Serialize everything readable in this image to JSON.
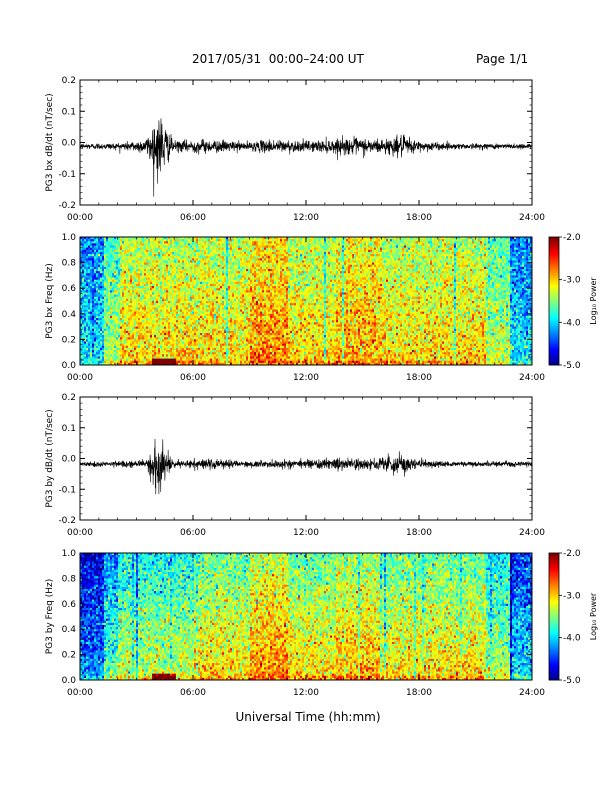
{
  "header": {
    "title": "2017/05/31  00:00–24:00 UT",
    "page": "Page 1/1"
  },
  "footer": {
    "xlabel": "Universal Time (hh:mm)"
  },
  "chart_data": [
    {
      "type": "line",
      "ylabel": "PG3 bx dB/dt (nT/sec)",
      "xlim": [
        0,
        24
      ],
      "ylim": [
        -0.2,
        0.2
      ],
      "xticks": [
        "00:00",
        "06:00",
        "12:00",
        "18:00",
        "24:00"
      ],
      "yticks": [
        "0.2",
        "0.1",
        "0.0",
        "-0.1",
        "-0.2"
      ],
      "series": [
        {
          "x": [
            0,
            2,
            3.5,
            4.0,
            4.3,
            4.6,
            5,
            6.5,
            9,
            10.2,
            12,
            13.5,
            14.5,
            16,
            17.0,
            17.5,
            18,
            20,
            22,
            24
          ],
          "amplitude": [
            0.008,
            0.01,
            0.02,
            0.08,
            0.1,
            0.05,
            0.015,
            0.02,
            0.012,
            0.02,
            0.015,
            0.02,
            0.025,
            0.02,
            0.03,
            0.025,
            0.015,
            0.008,
            0.008,
            0.008
          ],
          "baseline": -0.012
        }
      ]
    },
    {
      "type": "heatmap",
      "ylabel": "PG3 bx Freq (Hz)",
      "xlim": [
        0,
        24
      ],
      "ylim": [
        0,
        1
      ],
      "xticks": [
        "00:00",
        "06:00",
        "12:00",
        "18:00",
        "24:00"
      ],
      "yticks": [
        "1.0",
        "0.8",
        "0.6",
        "0.4",
        "0.2",
        "0.0"
      ],
      "colorbar": {
        "label": "Log₁₀ Power",
        "range": [
          -5.0,
          -2.0
        ],
        "ticks": [
          "-2.0",
          "-3.0",
          "-4.0",
          "-5.0"
        ]
      }
    },
    {
      "type": "line",
      "ylabel": "PG3 by dB/dt (nT/sec)",
      "xlim": [
        0,
        24
      ],
      "ylim": [
        -0.2,
        0.2
      ],
      "xticks": [
        "00:00",
        "06:00",
        "12:00",
        "18:00",
        "24:00"
      ],
      "yticks": [
        "0.2",
        "0.1",
        "0.0",
        "-0.1",
        "-0.2"
      ],
      "series": [
        {
          "x": [
            0,
            2,
            3.5,
            4.0,
            4.3,
            4.6,
            5,
            6.5,
            9,
            12,
            13,
            13.5,
            14.5,
            16,
            17.0,
            17.4,
            18,
            20,
            22,
            24
          ],
          "amplitude": [
            0.006,
            0.008,
            0.012,
            0.07,
            0.1,
            0.04,
            0.01,
            0.015,
            0.01,
            0.012,
            0.015,
            0.02,
            0.015,
            0.018,
            0.03,
            0.025,
            0.012,
            0.008,
            0.008,
            0.008
          ],
          "baseline": -0.018
        }
      ]
    },
    {
      "type": "heatmap",
      "ylabel": "PG3 by Freq (Hz)",
      "xlim": [
        0,
        24
      ],
      "ylim": [
        0,
        1
      ],
      "xticks": [
        "00:00",
        "06:00",
        "12:00",
        "18:00",
        "24:00"
      ],
      "yticks": [
        "1.0",
        "0.8",
        "0.6",
        "0.4",
        "0.2",
        "0.0"
      ],
      "colorbar": {
        "label": "Log₁₀ Power",
        "range": [
          -5.0,
          -2.0
        ],
        "ticks": [
          "-2.0",
          "-3.0",
          "-4.0",
          "-5.0"
        ]
      }
    }
  ]
}
